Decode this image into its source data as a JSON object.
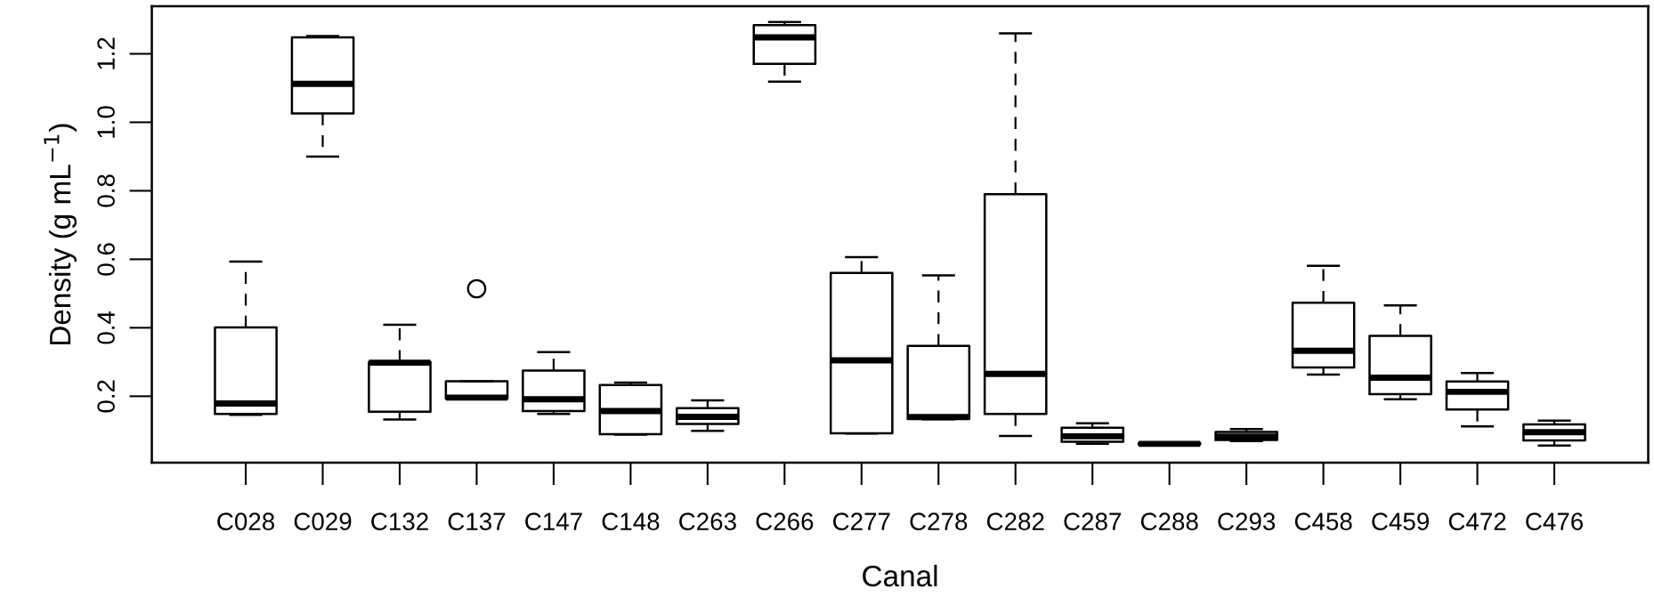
{
  "chart_data": {
    "type": "box",
    "xlabel": "Canal",
    "ylabel": "Density (g mL$^{−1}$)",
    "categories": [
      "C028",
      "C029",
      "C132",
      "C137",
      "C147",
      "C148",
      "C263",
      "C266",
      "C277",
      "C278",
      "C282",
      "C287",
      "C288",
      "C293",
      "C458",
      "C459",
      "C472",
      "C476"
    ],
    "boxes": [
      {
        "low": 0.146,
        "q1": 0.148,
        "median": 0.179,
        "q3": 0.401,
        "high": 0.593
      },
      {
        "low": 0.9,
        "q1": 1.026,
        "median": 1.112,
        "q3": 1.248,
        "high": 1.252
      },
      {
        "low": 0.132,
        "q1": 0.155,
        "median": 0.298,
        "q3": 0.3,
        "high": 0.409
      },
      {
        "low": 0.192,
        "q1": 0.193,
        "median": 0.196,
        "q3": 0.244,
        "high": 0.244,
        "outliers": [
          0.514
        ]
      },
      {
        "low": 0.148,
        "q1": 0.157,
        "median": 0.191,
        "q3": 0.275,
        "high": 0.329
      },
      {
        "low": 0.088,
        "q1": 0.089,
        "median": 0.157,
        "q3": 0.233,
        "high": 0.24
      },
      {
        "low": 0.099,
        "q1": 0.119,
        "median": 0.14,
        "q3": 0.165,
        "high": 0.188
      },
      {
        "low": 1.119,
        "q1": 1.171,
        "median": 1.248,
        "q3": 1.284,
        "high": 1.293
      },
      {
        "low": 0.091,
        "q1": 0.092,
        "median": 0.305,
        "q3": 0.56,
        "high": 0.606
      },
      {
        "low": 0.133,
        "q1": 0.134,
        "median": 0.139,
        "q3": 0.347,
        "high": 0.553
      },
      {
        "low": 0.084,
        "q1": 0.148,
        "median": 0.265,
        "q3": 0.79,
        "high": 1.26
      },
      {
        "low": 0.061,
        "q1": 0.067,
        "median": 0.083,
        "q3": 0.108,
        "high": 0.121
      },
      {
        "low": 0.058,
        "q1": 0.06,
        "median": 0.061,
        "q3": 0.063,
        "high": 0.064
      },
      {
        "low": 0.069,
        "q1": 0.072,
        "median": 0.082,
        "q3": 0.096,
        "high": 0.104
      },
      {
        "low": 0.263,
        "q1": 0.284,
        "median": 0.333,
        "q3": 0.473,
        "high": 0.581
      },
      {
        "low": 0.191,
        "q1": 0.206,
        "median": 0.254,
        "q3": 0.376,
        "high": 0.465
      },
      {
        "low": 0.112,
        "q1": 0.161,
        "median": 0.213,
        "q3": 0.243,
        "high": 0.268
      },
      {
        "low": 0.056,
        "q1": 0.071,
        "median": 0.095,
        "q3": 0.118,
        "high": 0.129
      }
    ],
    "ylim": [
      0.006,
      1.339
    ],
    "yticks": [
      0.2,
      0.4,
      0.6,
      0.8,
      {
        "value": 1,
        "label": "1.0"
      },
      1.2
    ]
  }
}
